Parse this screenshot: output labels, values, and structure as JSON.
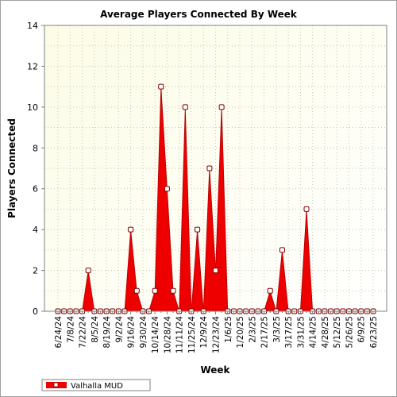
{
  "chart_data": {
    "type": "area",
    "title": "Average Players Connected By Week",
    "xlabel": "Week",
    "ylabel": "Players Connected",
    "ylim": [
      0,
      14
    ],
    "yticks": [
      0,
      2,
      4,
      6,
      8,
      10,
      12,
      14
    ],
    "grid": true,
    "legend_position": "bottom-left",
    "x": [
      "6/24/24",
      "7/1/24",
      "7/8/24",
      "7/15/24",
      "7/22/24",
      "7/29/24",
      "8/5/24",
      "8/12/24",
      "8/19/24",
      "8/26/24",
      "9/2/24",
      "9/9/24",
      "9/16/24",
      "9/23/24",
      "9/30/24",
      "10/7/24",
      "10/14/24",
      "10/21/24",
      "10/28/24",
      "11/4/24",
      "11/11/24",
      "11/18/24",
      "11/25/24",
      "12/2/24",
      "12/9/24",
      "12/16/24",
      "12/23/24",
      "12/30/24",
      "1/6/25",
      "1/13/25",
      "1/20/25",
      "1/27/25",
      "2/3/25",
      "2/10/25",
      "2/17/25",
      "2/24/25",
      "3/3/25",
      "3/10/25",
      "3/17/25",
      "3/24/25",
      "3/31/25",
      "4/7/25",
      "4/14/25",
      "4/21/25",
      "4/28/25",
      "5/5/25",
      "5/12/25",
      "5/19/25",
      "5/26/25",
      "6/2/25",
      "6/9/25",
      "6/16/25",
      "6/23/25"
    ],
    "x_tick_labels": [
      "6/24/24",
      "7/8/24",
      "7/22/24",
      "8/5/24",
      "8/19/24",
      "9/2/24",
      "9/16/24",
      "9/30/24",
      "10/14/24",
      "10/28/24",
      "11/11/24",
      "11/25/24",
      "12/9/24",
      "12/23/24",
      "1/6/25",
      "1/20/25",
      "2/3/25",
      "2/17/25",
      "3/3/25",
      "3/17/25",
      "3/31/25",
      "4/14/25",
      "4/28/25",
      "5/12/25",
      "5/26/25",
      "6/9/25",
      "6/23/25"
    ],
    "series": [
      {
        "name": "Valhalla MUD",
        "color": "#ee0000",
        "values": [
          0,
          0,
          0,
          0,
          0,
          2,
          0,
          0,
          0,
          0,
          0,
          0,
          4,
          1,
          0,
          0,
          1,
          11,
          6,
          1,
          0,
          10,
          0,
          4,
          0,
          7,
          2,
          10,
          0,
          0,
          0,
          0,
          0,
          0,
          0,
          1,
          0,
          3,
          0,
          0,
          0,
          5,
          0,
          0,
          0,
          0,
          0,
          0,
          0,
          0,
          0,
          0,
          0
        ]
      }
    ]
  }
}
